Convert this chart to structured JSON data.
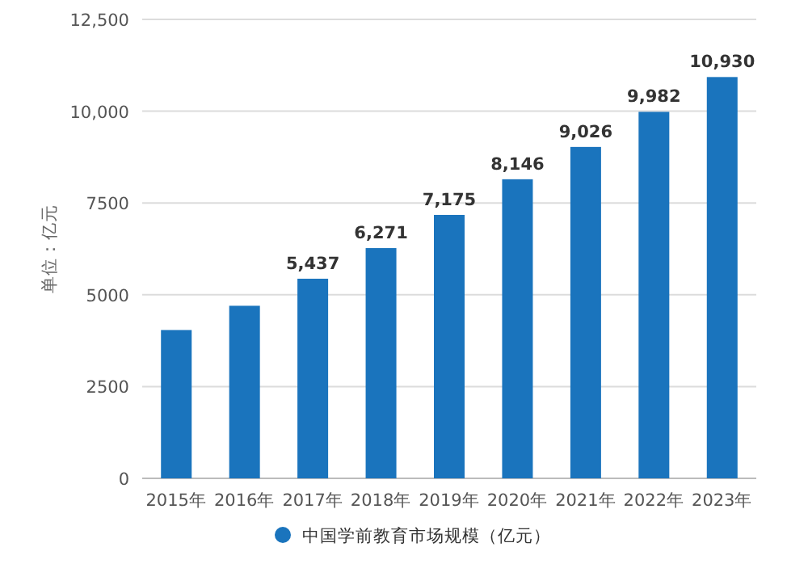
{
  "chart_data": {
    "type": "bar",
    "ylabel": "单位：亿元",
    "categories": [
      "2015年",
      "2016年",
      "2017年",
      "2018年",
      "2019年",
      "2020年",
      "2021年",
      "2022年",
      "2023年"
    ],
    "series": [
      {
        "name": "中国学前教育市场规模（亿元）",
        "color": "#1a74bd",
        "values": [
          4040,
          4700,
          5437,
          6271,
          7175,
          8146,
          9026,
          9982,
          10930
        ],
        "value_labels": [
          null,
          null,
          "5,437",
          "6,271",
          "7,175",
          "8,146",
          "9,026",
          "9,982",
          "10,930"
        ]
      }
    ],
    "ylim": [
      0,
      12500
    ],
    "yticks": [
      0,
      2500,
      5000,
      7500,
      {
        "value": 10000,
        "label": "10,000"
      },
      {
        "value": 12500,
        "label": "12,500"
      }
    ],
    "grid": "y",
    "legend": "bottom"
  }
}
